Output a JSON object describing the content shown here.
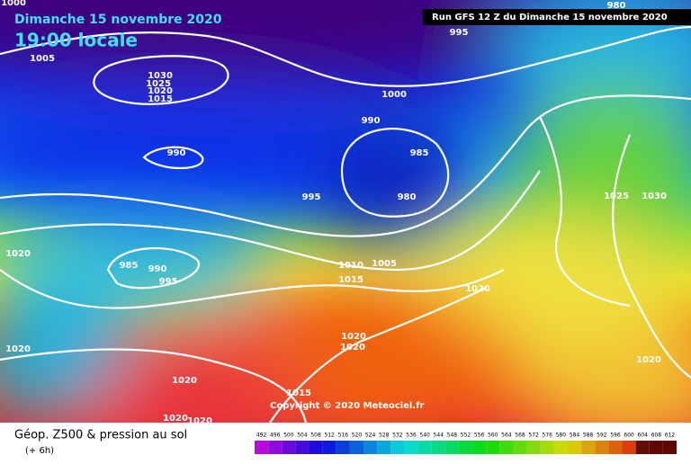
{
  "header": {
    "date": "Dimanche 15 novembre 2020",
    "time": "19:00 locale",
    "run": "Run GFS 12 Z du Dimanche 15 novembre 2020"
  },
  "isobar_labels": [
    "1000",
    "980",
    "995",
    "1005",
    "1030",
    "1025",
    "1020",
    "1015",
    "1000",
    "990",
    "990",
    "985",
    "980",
    "995",
    "1025",
    "1030",
    "1020",
    "985",
    "990",
    "995",
    "1010",
    "1005",
    "1015",
    "1020",
    "1020",
    "1020",
    "1020",
    "1020",
    "1020",
    "1015",
    "1020",
    "1020"
  ],
  "copyright": "Copyright © 2020 Meteociel.fr",
  "legend": {
    "title": "Géop. Z500 & pression au sol",
    "subtitle": "(+ 6h)",
    "scale": [
      492,
      496,
      500,
      504,
      508,
      512,
      516,
      520,
      524,
      528,
      532,
      536,
      540,
      544,
      548,
      552,
      556,
      560,
      564,
      568,
      572,
      576,
      580,
      584,
      588,
      592,
      596,
      600,
      604,
      608,
      612
    ]
  }
}
